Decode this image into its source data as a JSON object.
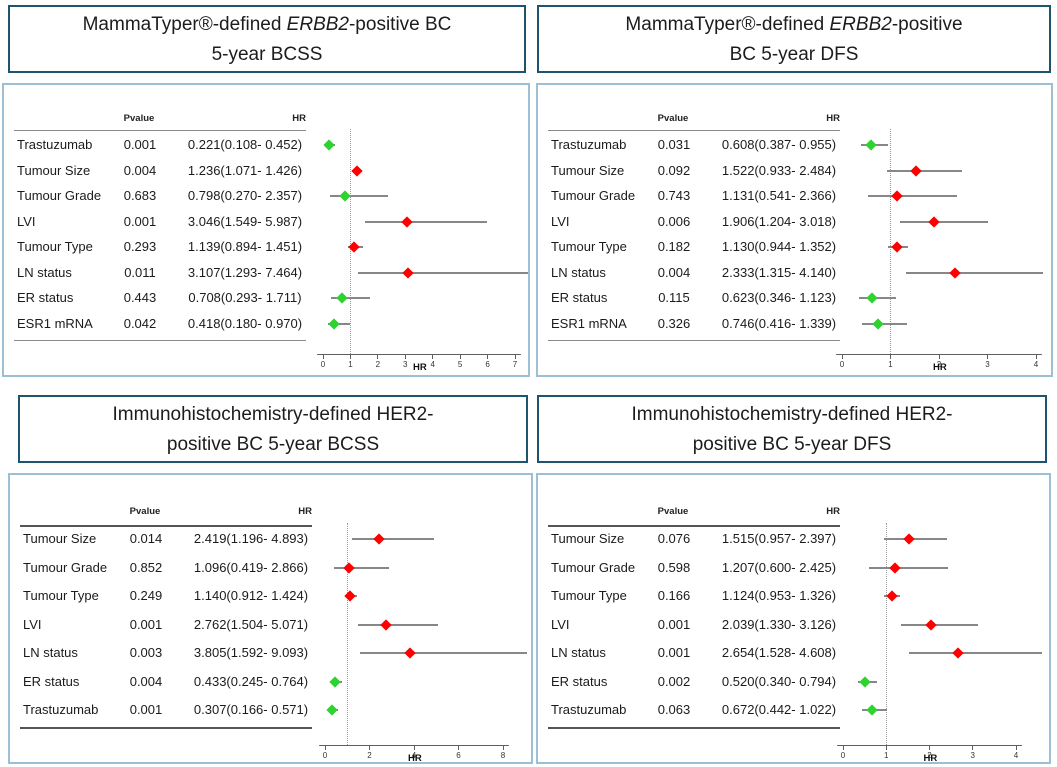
{
  "figure": {
    "col_headers": {
      "pvalue": "Pvalue",
      "hr": "HR"
    },
    "colors": {
      "hr_above_1": "#ff0000",
      "hr_below_1": "#2fd32f",
      "ci_line": "#878787",
      "title_border": "#1d5570",
      "panel_border": "#9dbfd3"
    }
  },
  "chart_data": [
    {
      "type": "forest",
      "title": "MammaTyper®-defined ERBB2-positive BC 5-year BCSS",
      "title_lines": [
        [
          {
            "text": "MammaTyper®-defined ",
            "italic": false
          },
          {
            "text": "ERBB2",
            "italic": true
          },
          {
            "text": "-positive BC",
            "italic": false
          }
        ],
        [
          {
            "text": "5-year BCSS",
            "italic": false
          }
        ]
      ],
      "xlabel": "HR",
      "xlim": [
        0,
        7
      ],
      "xticks": [
        0,
        1,
        2,
        3,
        4,
        5,
        6,
        7
      ],
      "reference_line": 1,
      "rows": [
        {
          "name": "Trastuzumab",
          "pvalue": "0.001",
          "hr_text": "0.221(0.108- 0.452)",
          "hr": 0.221,
          "lo": 0.108,
          "hi": 0.452,
          "color": "green"
        },
        {
          "name": "Tumour Size",
          "pvalue": "0.004",
          "hr_text": "1.236(1.071- 1.426)",
          "hr": 1.236,
          "lo": 1.071,
          "hi": 1.426,
          "color": "red"
        },
        {
          "name": "Tumour Grade",
          "pvalue": "0.683",
          "hr_text": "0.798(0.270- 2.357)",
          "hr": 0.798,
          "lo": 0.27,
          "hi": 2.357,
          "color": "green"
        },
        {
          "name": "LVI",
          "pvalue": "0.001",
          "hr_text": "3.046(1.549- 5.987)",
          "hr": 3.046,
          "lo": 1.549,
          "hi": 5.987,
          "color": "red"
        },
        {
          "name": "Tumour Type",
          "pvalue": "0.293",
          "hr_text": "1.139(0.894- 1.451)",
          "hr": 1.139,
          "lo": 0.894,
          "hi": 1.451,
          "color": "red"
        },
        {
          "name": "LN status",
          "pvalue": "0.011",
          "hr_text": "3.107(1.293- 7.464)",
          "hr": 3.107,
          "lo": 1.293,
          "hi": 7.464,
          "color": "red"
        },
        {
          "name": "ER status",
          "pvalue": "0.443",
          "hr_text": "0.708(0.293- 1.711)",
          "hr": 0.708,
          "lo": 0.293,
          "hi": 1.711,
          "color": "green"
        },
        {
          "name": "ESR1 mRNA",
          "pvalue": "0.042",
          "hr_text": "0.418(0.180- 0.970)",
          "hr": 0.418,
          "lo": 0.18,
          "hi": 0.97,
          "color": "green"
        }
      ]
    },
    {
      "type": "forest",
      "title": "MammaTyper®-defined ERBB2-positive BC 5-year DFS",
      "title_lines": [
        [
          {
            "text": "MammaTyper®-defined ",
            "italic": false
          },
          {
            "text": "ERBB2",
            "italic": true
          },
          {
            "text": "-positive",
            "italic": false
          }
        ],
        [
          {
            "text": "BC 5-year DFS",
            "italic": false
          }
        ]
      ],
      "xlabel": "HR",
      "xlim": [
        0,
        4
      ],
      "xticks": [
        0,
        1,
        2,
        3,
        4
      ],
      "reference_line": 1,
      "rows": [
        {
          "name": "Trastuzumab",
          "pvalue": "0.031",
          "hr_text": "0.608(0.387- 0.955)",
          "hr": 0.608,
          "lo": 0.387,
          "hi": 0.955,
          "color": "green"
        },
        {
          "name": "Tumour Size",
          "pvalue": "0.092",
          "hr_text": "1.522(0.933- 2.484)",
          "hr": 1.522,
          "lo": 0.933,
          "hi": 2.484,
          "color": "red"
        },
        {
          "name": "Tumour Grade",
          "pvalue": "0.743",
          "hr_text": "1.131(0.541- 2.366)",
          "hr": 1.131,
          "lo": 0.541,
          "hi": 2.366,
          "color": "red"
        },
        {
          "name": "LVI",
          "pvalue": "0.006",
          "hr_text": "1.906(1.204- 3.018)",
          "hr": 1.906,
          "lo": 1.204,
          "hi": 3.018,
          "color": "red"
        },
        {
          "name": "Tumour Type",
          "pvalue": "0.182",
          "hr_text": "1.130(0.944- 1.352)",
          "hr": 1.13,
          "lo": 0.944,
          "hi": 1.352,
          "color": "red"
        },
        {
          "name": "LN status",
          "pvalue": "0.004",
          "hr_text": "2.333(1.315- 4.140)",
          "hr": 2.333,
          "lo": 1.315,
          "hi": 4.14,
          "color": "red"
        },
        {
          "name": "ER status",
          "pvalue": "0.115",
          "hr_text": "0.623(0.346- 1.123)",
          "hr": 0.623,
          "lo": 0.346,
          "hi": 1.123,
          "color": "green"
        },
        {
          "name": "ESR1 mRNA",
          "pvalue": "0.326",
          "hr_text": "0.746(0.416- 1.339)",
          "hr": 0.746,
          "lo": 0.416,
          "hi": 1.339,
          "color": "green"
        }
      ]
    },
    {
      "type": "forest",
      "title": "Immunohistochemistry-defined HER2-positive BC 5-year BCSS",
      "title_lines": [
        [
          {
            "text": "Immunohistochemistry-defined HER2-",
            "italic": false
          }
        ],
        [
          {
            "text": "positive BC 5-year BCSS",
            "italic": false
          }
        ]
      ],
      "xlabel": "HR",
      "xlim": [
        0,
        8
      ],
      "xticks": [
        0,
        2,
        4,
        6,
        8
      ],
      "reference_line": 1,
      "rows": [
        {
          "name": "Tumour Size",
          "pvalue": "0.014",
          "hr_text": "2.419(1.196- 4.893)",
          "hr": 2.419,
          "lo": 1.196,
          "hi": 4.893,
          "color": "red"
        },
        {
          "name": "Tumour Grade",
          "pvalue": "0.852",
          "hr_text": "1.096(0.419- 2.866)",
          "hr": 1.096,
          "lo": 0.419,
          "hi": 2.866,
          "color": "red"
        },
        {
          "name": "Tumour Type",
          "pvalue": "0.249",
          "hr_text": "1.140(0.912- 1.424)",
          "hr": 1.14,
          "lo": 0.912,
          "hi": 1.424,
          "color": "red"
        },
        {
          "name": "LVI",
          "pvalue": "0.001",
          "hr_text": "2.762(1.504- 5.071)",
          "hr": 2.762,
          "lo": 1.504,
          "hi": 5.071,
          "color": "red"
        },
        {
          "name": "LN status",
          "pvalue": "0.003",
          "hr_text": "3.805(1.592- 9.093)",
          "hr": 3.805,
          "lo": 1.592,
          "hi": 9.093,
          "color": "red"
        },
        {
          "name": "ER status",
          "pvalue": "0.004",
          "hr_text": "0.433(0.245- 0.764)",
          "hr": 0.433,
          "lo": 0.245,
          "hi": 0.764,
          "color": "green"
        },
        {
          "name": "Trastuzumab",
          "pvalue": "0.001",
          "hr_text": "0.307(0.166- 0.571)",
          "hr": 0.307,
          "lo": 0.166,
          "hi": 0.571,
          "color": "green"
        }
      ]
    },
    {
      "type": "forest",
      "title": "Immunohistochemistry-defined HER2-positive BC 5-year DFS",
      "title_lines": [
        [
          {
            "text": "Immunohistochemistry-defined HER2-",
            "italic": false
          }
        ],
        [
          {
            "text": "positive BC 5-year DFS",
            "italic": false
          }
        ]
      ],
      "xlabel": "HR",
      "xlim": [
        0,
        4
      ],
      "xticks": [
        0,
        1,
        2,
        3,
        4
      ],
      "reference_line": 1,
      "rows": [
        {
          "name": "Tumour Size",
          "pvalue": "0.076",
          "hr_text": "1.515(0.957- 2.397)",
          "hr": 1.515,
          "lo": 0.957,
          "hi": 2.397,
          "color": "red"
        },
        {
          "name": "Tumour Grade",
          "pvalue": "0.598",
          "hr_text": "1.207(0.600- 2.425)",
          "hr": 1.207,
          "lo": 0.6,
          "hi": 2.425,
          "color": "red"
        },
        {
          "name": "Tumour Type",
          "pvalue": "0.166",
          "hr_text": "1.124(0.953- 1.326)",
          "hr": 1.124,
          "lo": 0.953,
          "hi": 1.326,
          "color": "red"
        },
        {
          "name": "LVI",
          "pvalue": "0.001",
          "hr_text": "2.039(1.330- 3.126)",
          "hr": 2.039,
          "lo": 1.33,
          "hi": 3.126,
          "color": "red"
        },
        {
          "name": "LN status",
          "pvalue": "0.001",
          "hr_text": "2.654(1.528- 4.608)",
          "hr": 2.654,
          "lo": 1.528,
          "hi": 4.608,
          "color": "red"
        },
        {
          "name": "ER status",
          "pvalue": "0.002",
          "hr_text": "0.520(0.340- 0.794)",
          "hr": 0.52,
          "lo": 0.34,
          "hi": 0.794,
          "color": "green"
        },
        {
          "name": "Trastuzumab",
          "pvalue": "0.063",
          "hr_text": "0.672(0.442- 1.022)",
          "hr": 0.672,
          "lo": 0.442,
          "hi": 1.022,
          "color": "green"
        }
      ]
    }
  ]
}
